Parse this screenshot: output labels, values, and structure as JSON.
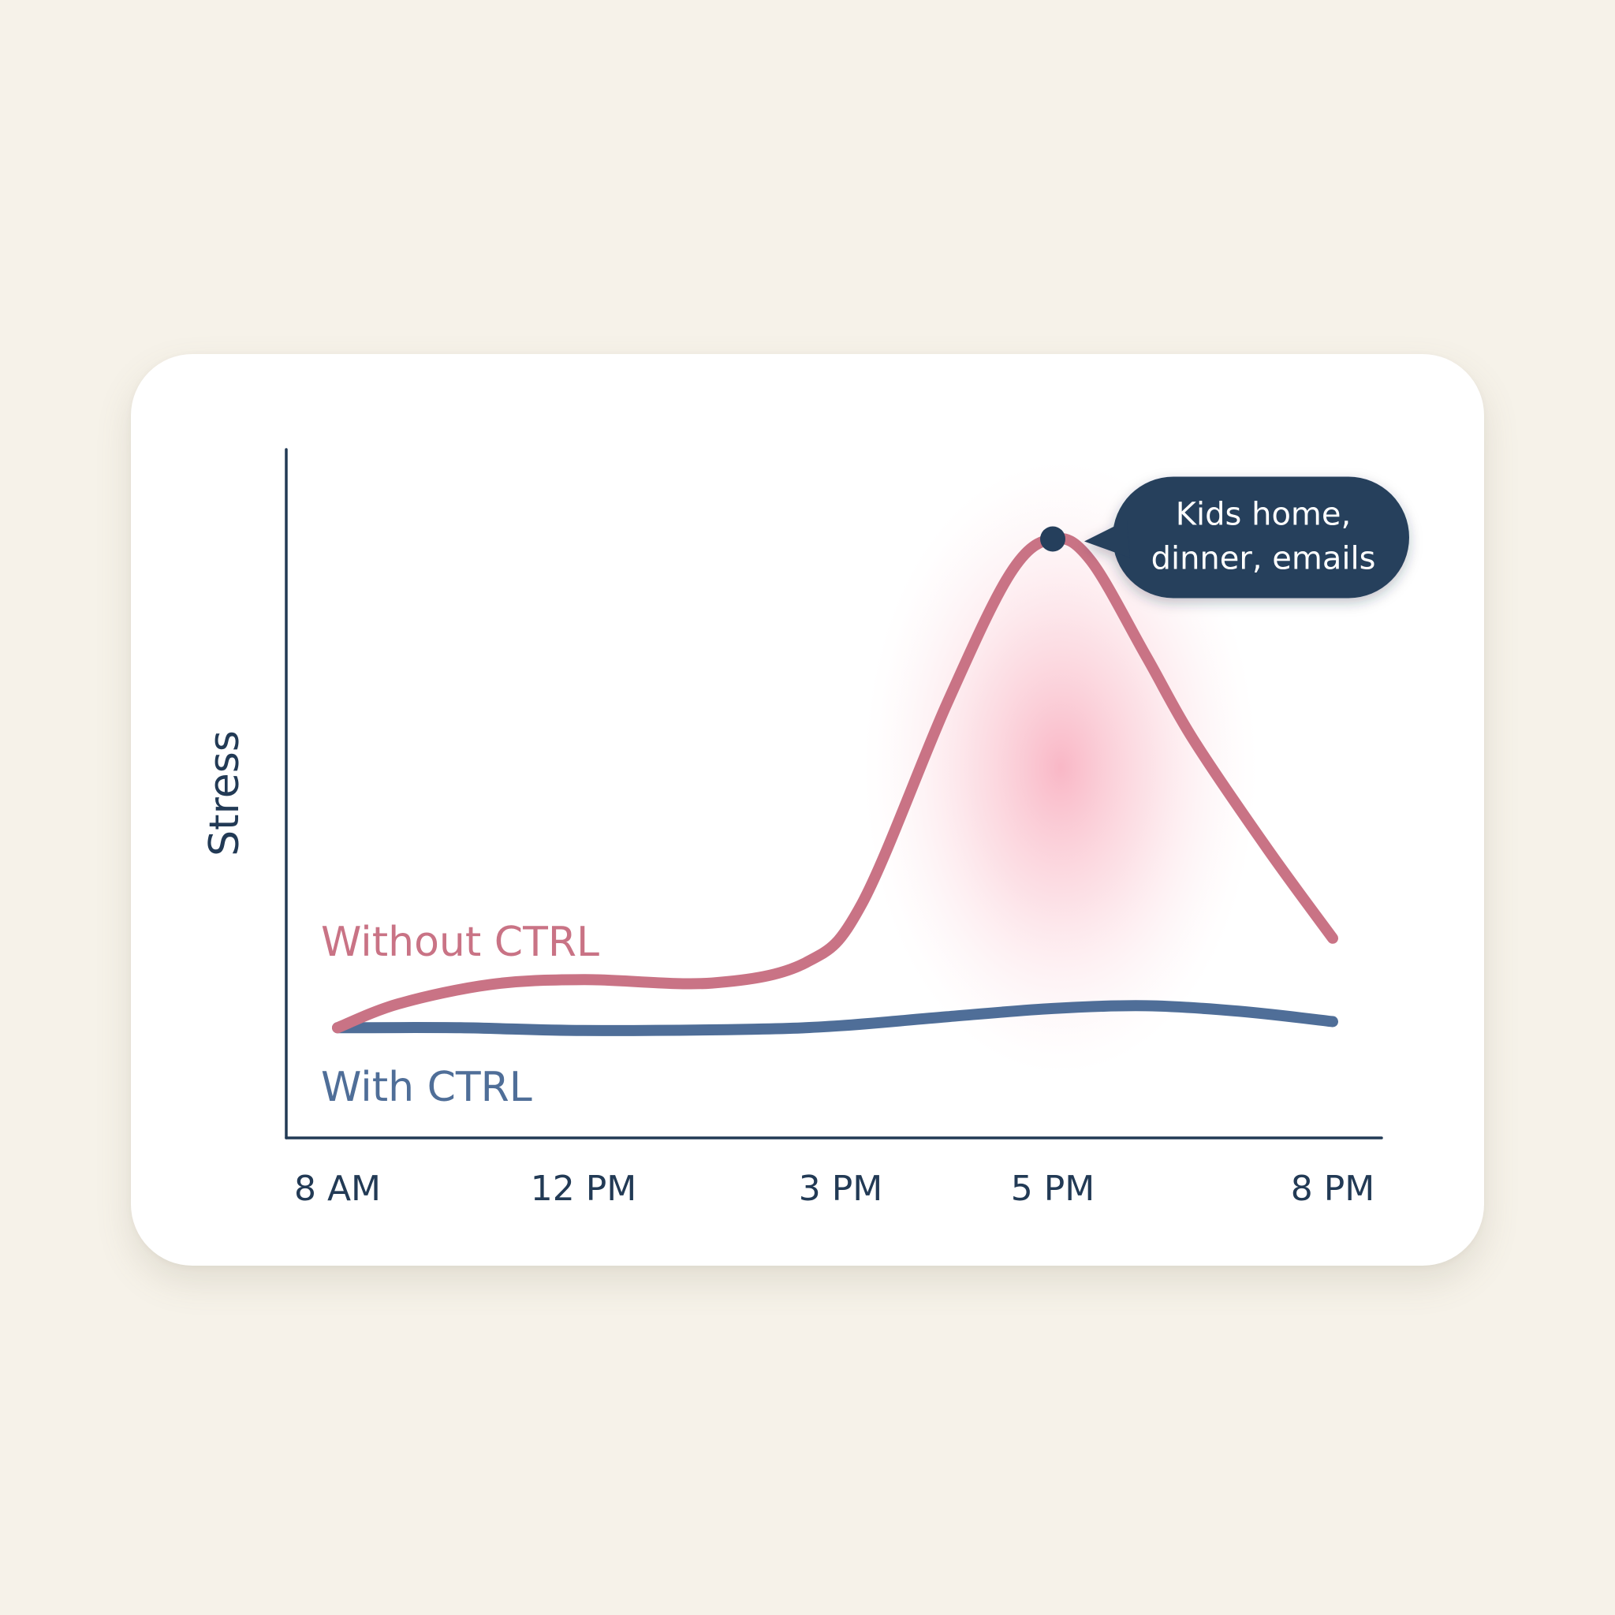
{
  "chart_data": {
    "type": "line",
    "title": "",
    "xlabel": "",
    "ylabel": "Stress",
    "x_ticks": [
      {
        "label": "8 AM",
        "hour": 8
      },
      {
        "label": "12 PM",
        "hour": 12
      },
      {
        "label": "3 PM",
        "hour": 15
      },
      {
        "label": "5 PM",
        "hour": 17
      },
      {
        "label": "8 PM",
        "hour": 20
      }
    ],
    "xlim": [
      7.75,
      20.4
    ],
    "ylim": [
      0,
      100
    ],
    "grid": false,
    "legend": "inline labels",
    "series": [
      {
        "name": "Without CTRL",
        "color": "#c97385",
        "points": [
          {
            "x": 8.0,
            "y": 16
          },
          {
            "x": 9.0,
            "y": 19.5
          },
          {
            "x": 10.5,
            "y": 22.3
          },
          {
            "x": 12.0,
            "y": 23
          },
          {
            "x": 13.5,
            "y": 22.5
          },
          {
            "x": 14.6,
            "y": 25.5
          },
          {
            "x": 15.2,
            "y": 34
          },
          {
            "x": 16.0,
            "y": 63
          },
          {
            "x": 16.6,
            "y": 82
          },
          {
            "x": 17.0,
            "y": 87
          },
          {
            "x": 17.4,
            "y": 84
          },
          {
            "x": 18.0,
            "y": 70
          },
          {
            "x": 18.5,
            "y": 58
          },
          {
            "x": 19.3,
            "y": 42
          },
          {
            "x": 20.0,
            "y": 29
          }
        ]
      },
      {
        "name": "With CTRL",
        "color": "#4f6e98",
        "points": [
          {
            "x": 8.0,
            "y": 16
          },
          {
            "x": 10.0,
            "y": 16
          },
          {
            "x": 12.0,
            "y": 15.6
          },
          {
            "x": 14.0,
            "y": 15.8
          },
          {
            "x": 15.0,
            "y": 16.3
          },
          {
            "x": 16.0,
            "y": 17.6
          },
          {
            "x": 17.0,
            "y": 18.8
          },
          {
            "x": 18.0,
            "y": 19.2
          },
          {
            "x": 19.0,
            "y": 18.4
          },
          {
            "x": 20.0,
            "y": 16.9
          }
        ]
      }
    ],
    "annotations": [
      {
        "text_lines": [
          "Kids home,",
          "dinner, emails"
        ],
        "x": 17.0,
        "y": 87
      }
    ]
  },
  "colors": {
    "background": "#f6f2e9",
    "card": "#ffffff",
    "axis": "#223a55",
    "text": "#223a55",
    "callout_bg": "#253f5c",
    "callout_text": "#ffffff",
    "glow": "#f7a3b6"
  }
}
